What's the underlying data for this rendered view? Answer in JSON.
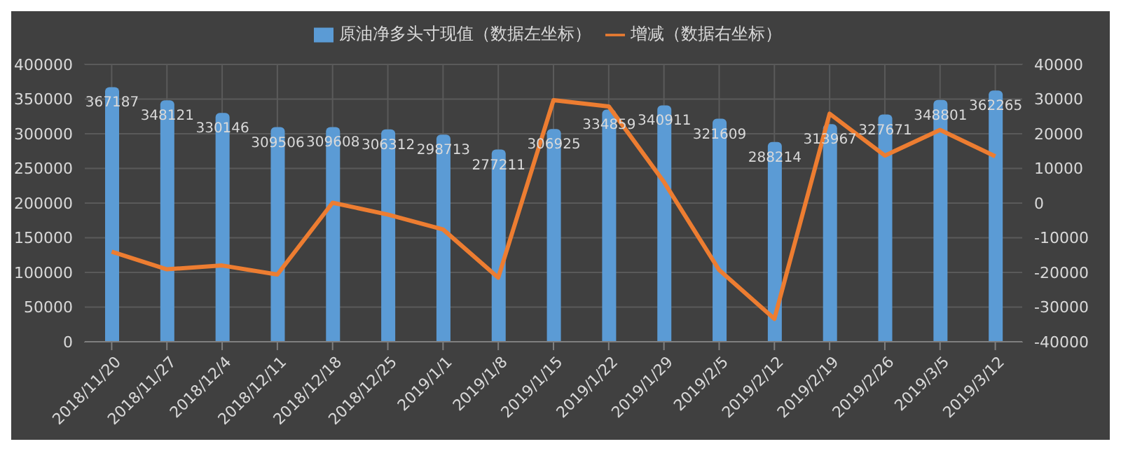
{
  "chart_data": {
    "type": "bar",
    "categories": [
      "2018/11/20",
      "2018/11/27",
      "2018/12/4",
      "2018/12/11",
      "2018/12/18",
      "2018/12/25",
      "2019/1/1",
      "2019/1/8",
      "2019/1/15",
      "2019/1/22",
      "2019/1/29",
      "2019/2/5",
      "2019/2/12",
      "2019/2/19",
      "2019/2/26",
      "2019/3/5",
      "2019/3/12"
    ],
    "series": [
      {
        "name": "原油净多头寸现值（数据左坐标）",
        "color": "#5b9bd5",
        "values": [
          367187,
          348121,
          330146,
          309506,
          309608,
          306312,
          298713,
          277211,
          306925,
          334859,
          340911,
          321609,
          288214,
          313967,
          327671,
          348801,
          362265
        ],
        "value_labels": [
          "367187",
          "348121",
          "330146",
          "309506",
          "309608",
          "306312",
          "298713",
          "277211",
          "306925",
          "334859",
          "340911",
          "321609",
          "288214",
          "313967",
          "327671",
          "348801",
          "362265"
        ]
      },
      {
        "name": "增减（数据右坐标）",
        "type": "line",
        "axis": "y2",
        "color": "#ed7d31",
        "values": [
          -14000,
          -19100,
          -18000,
          -20600,
          100,
          -3300,
          -7600,
          -21500,
          29700,
          27900,
          6100,
          -19300,
          -33400,
          25800,
          13700,
          21100,
          13500
        ]
      }
    ],
    "ylim": [
      0,
      400000
    ],
    "yticks": [
      0,
      50000,
      100000,
      150000,
      200000,
      250000,
      300000,
      350000,
      400000
    ],
    "y2lim": [
      -40000,
      40000
    ],
    "y2ticks": [
      -40000,
      -30000,
      -20000,
      -10000,
      0,
      10000,
      20000,
      30000,
      40000
    ],
    "grid": true,
    "legend": "top",
    "marker": "none",
    "line_style": "solid"
  }
}
